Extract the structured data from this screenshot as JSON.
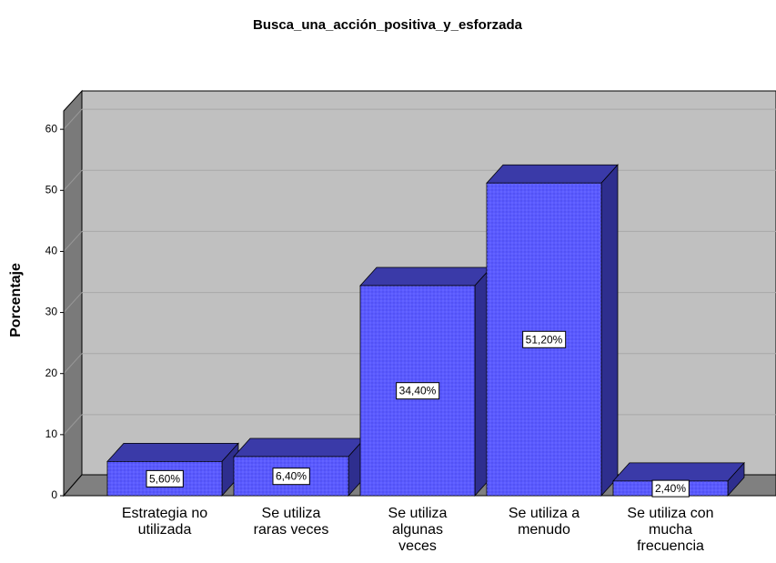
{
  "chart_data": {
    "type": "bar3d",
    "title": "Busca_una_acción_positiva_y_esforzada",
    "y_label": "Porcentaje",
    "categories": [
      "Estrategia no\nutilizada",
      "Se utiliza\nraras veces",
      "Se utiliza\nalgunas\nveces",
      "Se utiliza a\nmenudo",
      "Se utiliza con\nmucha\nfrecuencia"
    ],
    "values": [
      5.6,
      6.4,
      34.4,
      51.2,
      2.4
    ],
    "value_labels": [
      "5,60%",
      "6,40%",
      "34,40%",
      "51,20%",
      "2,40%"
    ],
    "color": "#5a5aff",
    "ylim": [
      0,
      63
    ],
    "yticks": [
      0,
      10,
      20,
      30,
      40,
      50,
      60
    ],
    "grid": true
  }
}
